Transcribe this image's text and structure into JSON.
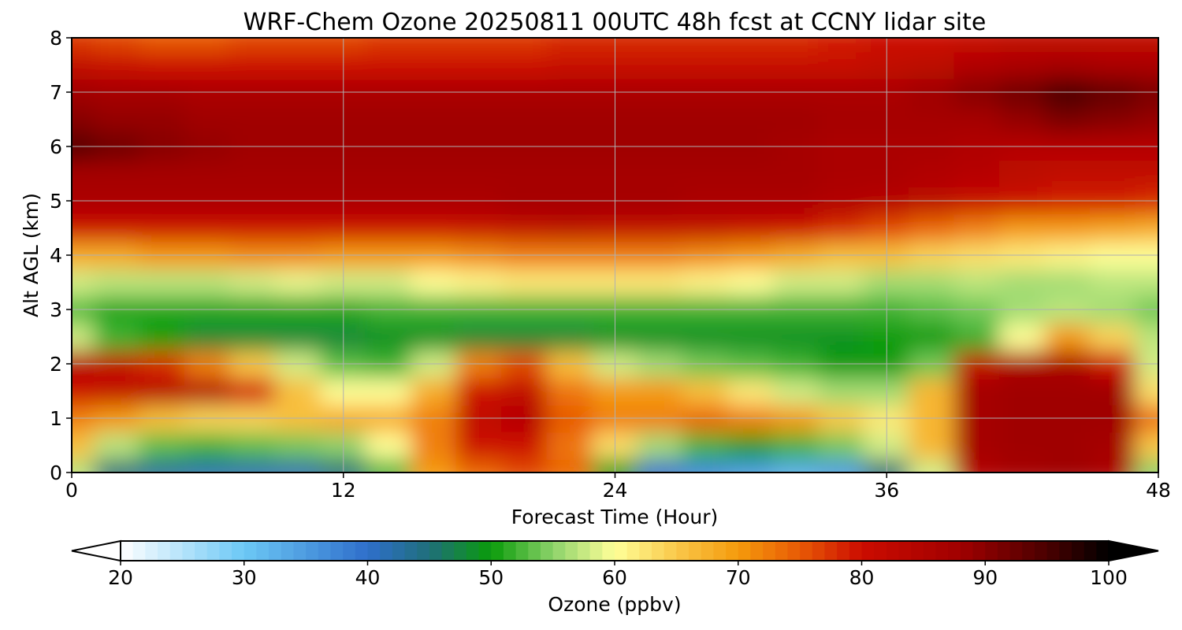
{
  "chart_data": {
    "type": "heatmap",
    "title": "WRF-Chem Ozone  20250811 00UTC 48h fcst at CCNY lidar site",
    "xlabel": "Forecast Time (Hour)",
    "ylabel": "Alt AGL (km)",
    "xlim": [
      0,
      48
    ],
    "ylim": [
      0,
      8
    ],
    "xticks": [
      0,
      12,
      24,
      36,
      48
    ],
    "yticks": [
      0,
      1,
      2,
      3,
      4,
      5,
      6,
      7,
      8
    ],
    "grid": true,
    "colorbar": {
      "label": "Ozone  (ppbv)",
      "min": 20,
      "max": 100,
      "ticks": [
        20,
        30,
        40,
        50,
        60,
        70,
        80,
        90,
        100
      ],
      "extend": "both",
      "stops": [
        {
          "v": 20,
          "c": "#ffffff"
        },
        {
          "v": 30,
          "c": "#6cc8f5"
        },
        {
          "v": 40,
          "c": "#2f6fcb"
        },
        {
          "v": 45,
          "c": "#1f6f7a"
        },
        {
          "v": 50,
          "c": "#0a9b0a"
        },
        {
          "v": 55,
          "c": "#8cd36a"
        },
        {
          "v": 60,
          "c": "#ffff99"
        },
        {
          "v": 65,
          "c": "#f9c84a"
        },
        {
          "v": 70,
          "c": "#f59a0c"
        },
        {
          "v": 75,
          "c": "#e85a05"
        },
        {
          "v": 80,
          "c": "#cc0c00"
        },
        {
          "v": 88,
          "c": "#a00000"
        },
        {
          "v": 95,
          "c": "#4a0000"
        },
        {
          "v": 100,
          "c": "#000000"
        }
      ]
    },
    "time_hours": [
      0,
      2,
      4,
      6,
      8,
      10,
      12,
      14,
      16,
      18,
      20,
      22,
      24,
      26,
      28,
      30,
      32,
      34,
      36,
      38,
      40,
      42,
      44,
      46,
      48
    ],
    "alt_km": [
      0,
      0.5,
      1,
      1.5,
      2,
      2.5,
      3,
      3.5,
      4,
      4.5,
      5,
      5.5,
      6,
      6.5,
      7,
      7.5,
      8
    ],
    "ozone_ppbv": [
      [
        57,
        45,
        43,
        42,
        42,
        42,
        45,
        52,
        70,
        74,
        76,
        74,
        50,
        40,
        37,
        35,
        33,
        35,
        45,
        58,
        85,
        87,
        88,
        86,
        55
      ],
      [
        66,
        57,
        53,
        52,
        53,
        54,
        55,
        60,
        72,
        80,
        80,
        73,
        63,
        56,
        52,
        50,
        52,
        54,
        58,
        67,
        87,
        88,
        88,
        87,
        65
      ],
      [
        72,
        70,
        66,
        64,
        64,
        66,
        68,
        68,
        72,
        82,
        84,
        75,
        72,
        72,
        74,
        72,
        70,
        65,
        62,
        67,
        87,
        88,
        88,
        88,
        73
      ],
      [
        80,
        82,
        84,
        85,
        79,
        66,
        60,
        60,
        68,
        80,
        82,
        73,
        70,
        70,
        66,
        62,
        58,
        56,
        56,
        67,
        87,
        88,
        88,
        88,
        63
      ],
      [
        84,
        82,
        78,
        72,
        65,
        58,
        53,
        52,
        58,
        72,
        76,
        66,
        58,
        56,
        54,
        53,
        52,
        50,
        50,
        54,
        82,
        86,
        86,
        80,
        58
      ],
      [
        58,
        52,
        50,
        48,
        48,
        48,
        48,
        49,
        49,
        48,
        48,
        48,
        49,
        49,
        49,
        49,
        49,
        49,
        50,
        50,
        52,
        60,
        70,
        64,
        57
      ],
      [
        53,
        51,
        51,
        51,
        51,
        51,
        51,
        52,
        52,
        52,
        52,
        52,
        52,
        52,
        52,
        52,
        52,
        52,
        52,
        53,
        54,
        56,
        57,
        56,
        54
      ],
      [
        58,
        57,
        57,
        57,
        58,
        59,
        58,
        58,
        60,
        61,
        62,
        62,
        62,
        62,
        61,
        60,
        58,
        58,
        56,
        56,
        57,
        56,
        56,
        57,
        57
      ],
      [
        68,
        68,
        70,
        70,
        71,
        71,
        70,
        70,
        70,
        71,
        72,
        72,
        72,
        72,
        71,
        70,
        68,
        66,
        66,
        64,
        63,
        62,
        61,
        60,
        60
      ],
      [
        80,
        80,
        80,
        80,
        80,
        80,
        80,
        80,
        80,
        81,
        82,
        83,
        82,
        82,
        82,
        81,
        80,
        78,
        76,
        74,
        72,
        70,
        70,
        69,
        68
      ],
      [
        86,
        86,
        86,
        86,
        86,
        86,
        86,
        86,
        86,
        86,
        87,
        87,
        87,
        87,
        86,
        86,
        86,
        85,
        84,
        83,
        81,
        80,
        79,
        79,
        78
      ],
      [
        87,
        87,
        87,
        87,
        87,
        87,
        87,
        87,
        87,
        87,
        87,
        87,
        87,
        87,
        87,
        87,
        87,
        86,
        86,
        85,
        84,
        83,
        82,
        82,
        82
      ],
      [
        94,
        92,
        90,
        89,
        88,
        88,
        88,
        88,
        88,
        88,
        88,
        88,
        88,
        88,
        88,
        88,
        87,
        86,
        86,
        86,
        85,
        84,
        84,
        84,
        84
      ],
      [
        90,
        89,
        89,
        88,
        88,
        88,
        88,
        88,
        88,
        88,
        88,
        88,
        88,
        88,
        88,
        88,
        88,
        87,
        87,
        87,
        87,
        89,
        91,
        90,
        89
      ],
      [
        88,
        87,
        87,
        86,
        86,
        86,
        86,
        86,
        86,
        86,
        86,
        86,
        86,
        86,
        86,
        86,
        86,
        86,
        86,
        88,
        90,
        92,
        95,
        93,
        91
      ],
      [
        82,
        81,
        80,
        80,
        80,
        80,
        80,
        80,
        80,
        80,
        80,
        81,
        81,
        81,
        81,
        81,
        81,
        81,
        82,
        83,
        85,
        86,
        87,
        86,
        86
      ],
      [
        77,
        76,
        75,
        75,
        76,
        76,
        76,
        77,
        77,
        77,
        77,
        78,
        78,
        78,
        78,
        78,
        78,
        79,
        80,
        80,
        81,
        82,
        82,
        82,
        82
      ]
    ]
  }
}
